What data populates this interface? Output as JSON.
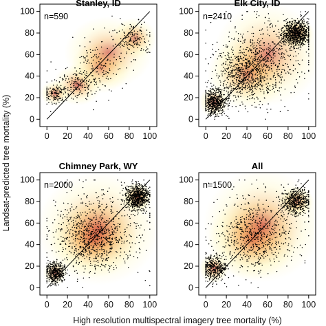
{
  "figure": {
    "ylabel": "Landsat-predicted tree mortality (%)",
    "xlabel": "High resolution multispectral imagery tree mortality (%)",
    "colors": {
      "points": "#000000",
      "density_low": "#fff6a8",
      "density_mid": "#f3a13a",
      "density_high": "#c0261d",
      "one_to_one_line": "#000000"
    }
  },
  "chart_data": [
    {
      "type": "scatter",
      "title": "Stanley, ID",
      "annotation": "n=590",
      "n": 590,
      "xlim": [
        0,
        100
      ],
      "ylim": [
        0,
        100
      ],
      "xticks": [
        "0",
        "20",
        "40",
        "60",
        "80",
        "100"
      ],
      "yticks": [
        "0",
        "20",
        "40",
        "60",
        "80",
        "100"
      ],
      "reference_line": "1:1",
      "density_overlay": true,
      "clusters": [
        {
          "x": 8,
          "y": 24,
          "sx": 6,
          "sy": 5,
          "weight": 0.22
        },
        {
          "x": 30,
          "y": 32,
          "sx": 10,
          "sy": 8,
          "weight": 0.25
        },
        {
          "x": 52,
          "y": 48,
          "sx": 12,
          "sy": 10,
          "weight": 0.18
        },
        {
          "x": 85,
          "y": 75,
          "sx": 9,
          "sy": 8,
          "weight": 0.25
        },
        {
          "x": 60,
          "y": 62,
          "sx": 18,
          "sy": 14,
          "weight": 0.1
        }
      ]
    },
    {
      "type": "scatter",
      "title": "Elk City, ID",
      "annotation": "n=2410",
      "n": 2410,
      "xlim": [
        0,
        100
      ],
      "ylim": [
        0,
        100
      ],
      "xticks": [
        "0",
        "20",
        "40",
        "60",
        "80",
        "100"
      ],
      "yticks": [
        "0",
        "20",
        "40",
        "60",
        "80",
        "100"
      ],
      "reference_line": "1:1",
      "density_overlay": true,
      "clusters": [
        {
          "x": 8,
          "y": 16,
          "sx": 6,
          "sy": 6,
          "weight": 0.22
        },
        {
          "x": 40,
          "y": 42,
          "sx": 16,
          "sy": 14,
          "weight": 0.3
        },
        {
          "x": 88,
          "y": 80,
          "sx": 7,
          "sy": 6,
          "weight": 0.33
        },
        {
          "x": 60,
          "y": 60,
          "sx": 22,
          "sy": 20,
          "weight": 0.15
        }
      ]
    },
    {
      "type": "scatter",
      "title": "Chimney Park, WY",
      "annotation": "n=2000",
      "n": 2000,
      "xlim": [
        0,
        100
      ],
      "ylim": [
        0,
        100
      ],
      "xticks": [
        "0",
        "20",
        "40",
        "60",
        "80",
        "100"
      ],
      "yticks": [
        "0",
        "20",
        "40",
        "60",
        "80",
        "100"
      ],
      "reference_line": "1:1",
      "density_overlay": true,
      "clusters": [
        {
          "x": 8,
          "y": 14,
          "sx": 5,
          "sy": 5,
          "weight": 0.2
        },
        {
          "x": 45,
          "y": 45,
          "sx": 18,
          "sy": 15,
          "weight": 0.3
        },
        {
          "x": 88,
          "y": 84,
          "sx": 6,
          "sy": 6,
          "weight": 0.35
        },
        {
          "x": 50,
          "y": 55,
          "sx": 25,
          "sy": 22,
          "weight": 0.15
        }
      ]
    },
    {
      "type": "scatter",
      "title": "All",
      "annotation": "n=1500",
      "n": 1500,
      "xlim": [
        0,
        100
      ],
      "ylim": [
        0,
        100
      ],
      "xticks": [
        "0",
        "20",
        "40",
        "60",
        "80",
        "100"
      ],
      "yticks": [
        "0",
        "20",
        "40",
        "60",
        "80",
        "100"
      ],
      "reference_line": "1:1",
      "density_overlay": true,
      "clusters": [
        {
          "x": 8,
          "y": 18,
          "sx": 6,
          "sy": 6,
          "weight": 0.25
        },
        {
          "x": 45,
          "y": 45,
          "sx": 18,
          "sy": 16,
          "weight": 0.28
        },
        {
          "x": 88,
          "y": 80,
          "sx": 7,
          "sy": 6,
          "weight": 0.32
        },
        {
          "x": 55,
          "y": 58,
          "sx": 24,
          "sy": 22,
          "weight": 0.15
        }
      ]
    }
  ]
}
